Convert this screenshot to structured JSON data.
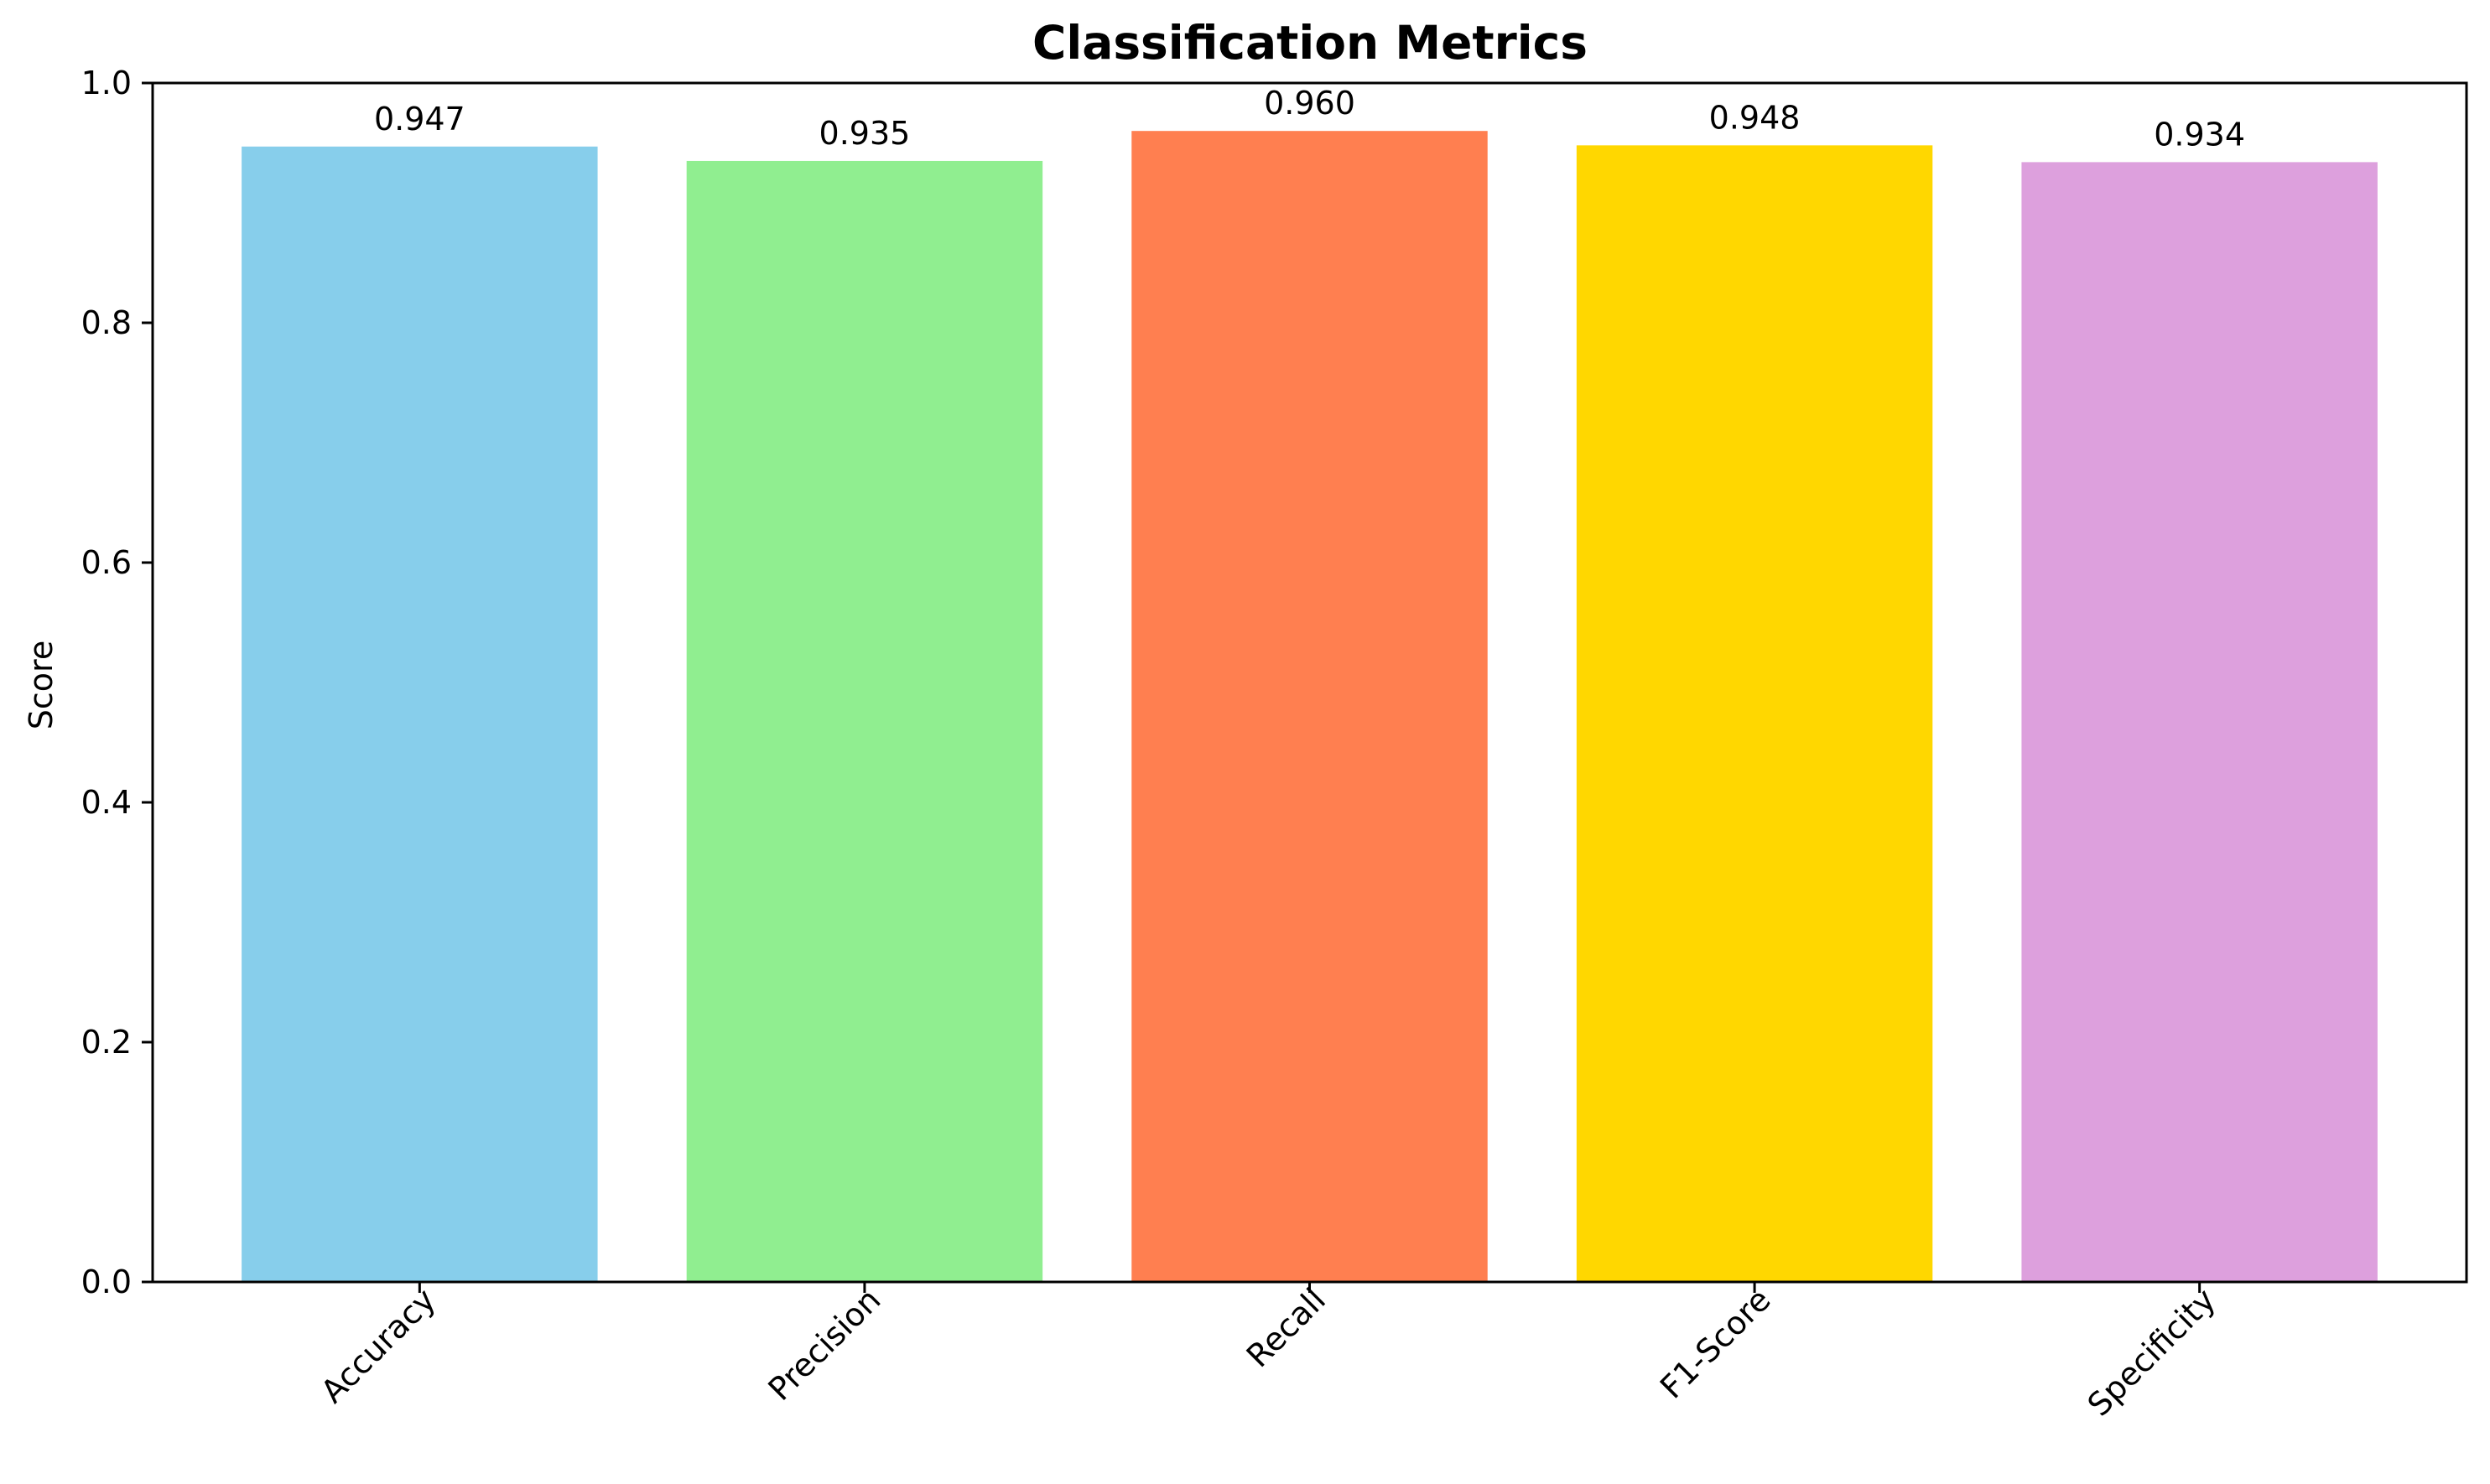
{
  "chart_data": {
    "type": "bar",
    "title": "Classification Metrics",
    "xlabel": "",
    "ylabel": "Score",
    "ylim": [
      0,
      1.0
    ],
    "yticks": [
      0.0,
      0.2,
      0.4,
      0.6,
      0.8,
      1.0
    ],
    "ytick_labels": [
      "0.0",
      "0.2",
      "0.4",
      "0.6",
      "0.8",
      "1.0"
    ],
    "categories": [
      "Accuracy",
      "Precision",
      "Recall",
      "F1-Score",
      "Specificity"
    ],
    "values": [
      0.947,
      0.935,
      0.96,
      0.948,
      0.934
    ],
    "value_labels": [
      "0.947",
      "0.935",
      "0.960",
      "0.948",
      "0.934"
    ],
    "colors": [
      "#87CEEB",
      "#90EE90",
      "#FF7F50",
      "#FFD700",
      "#DDA0DD"
    ],
    "grid": false,
    "legend": "none"
  }
}
